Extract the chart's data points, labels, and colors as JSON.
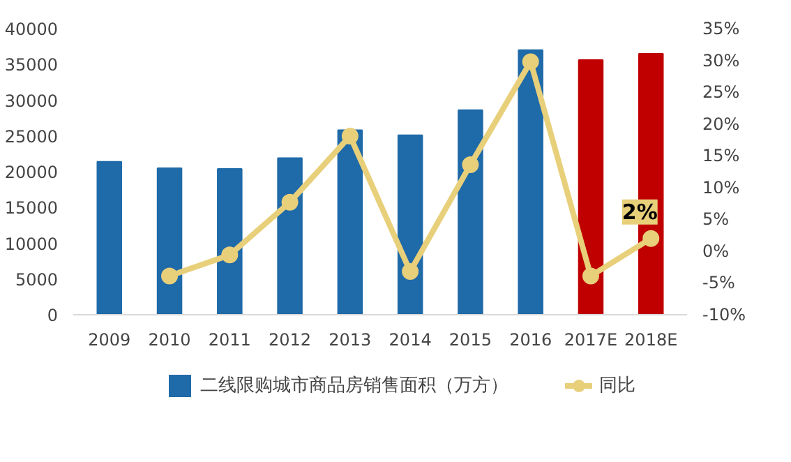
{
  "chart_data": {
    "type": "bar",
    "categories": [
      "2009",
      "2010",
      "2011",
      "2012",
      "2013",
      "2014",
      "2015",
      "2016",
      "2017E",
      "2018E"
    ],
    "series": [
      {
        "name": "二线限购城市商品房销售面积（万方）",
        "color": "#1f6aa8",
        "colors": [
          "#1f6aa8",
          "#1f6aa8",
          "#1f6aa8",
          "#1f6aa8",
          "#1f6aa8",
          "#1f6aa8",
          "#1f6aa8",
          "#1f6aa8",
          "#c00000",
          "#c00000"
        ],
        "values": [
          21400,
          20500,
          20400,
          21900,
          25800,
          25100,
          28600,
          37000,
          35600,
          36500
        ]
      },
      {
        "name": "同比",
        "type": "line",
        "axis": "y2",
        "color": "#e8cf7a",
        "values": [
          null,
          -3.9,
          -0.6,
          7.7,
          18.1,
          -3.2,
          13.6,
          29.8,
          -3.9,
          2
        ],
        "value_labels": [
          null,
          null,
          null,
          null,
          null,
          null,
          null,
          null,
          null,
          "2%"
        ]
      }
    ],
    "ylim": [
      0,
      40000
    ],
    "yticks": [
      0,
      5000,
      10000,
      15000,
      20000,
      25000,
      30000,
      35000,
      40000
    ],
    "y2lim": [
      -10,
      35
    ],
    "y2ticks": [
      {
        "value": -10,
        "label": "-10%"
      },
      {
        "value": -5,
        "label": "-5%"
      },
      {
        "value": 0,
        "label": "0%"
      },
      {
        "value": 5,
        "label": "5%"
      },
      {
        "value": 10,
        "label": "10%"
      },
      {
        "value": 15,
        "label": "15%"
      },
      {
        "value": 20,
        "label": "20%"
      },
      {
        "value": 25,
        "label": "25%"
      },
      {
        "value": 30,
        "label": "30%"
      },
      {
        "value": 35,
        "label": "35%"
      }
    ],
    "grid": false,
    "legend": "bottom",
    "marker": "circle",
    "line_style": "solid"
  }
}
